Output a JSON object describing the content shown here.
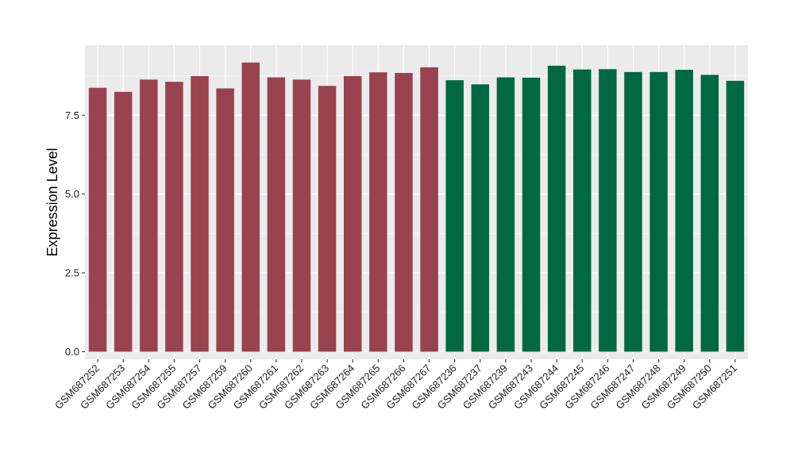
{
  "chart_data": {
    "type": "bar",
    "ylabel": "Expression Level",
    "xlabel": "",
    "ylim": [
      -0.24,
      9.72
    ],
    "yticks": [
      0.0,
      2.5,
      5.0,
      7.5
    ],
    "ytick_labels": [
      "0.0",
      "2.5",
      "5.0",
      "7.5"
    ],
    "grid": true,
    "legend": "none",
    "colors": {
      "group1": "#98434F",
      "group2": "#006843",
      "panel": "#EBEBEB",
      "grid": "#FFFFFF"
    },
    "categories": [
      "GSM687252",
      "GSM687253",
      "GSM687254",
      "GSM687255",
      "GSM687257",
      "GSM687259",
      "GSM687260",
      "GSM687261",
      "GSM687262",
      "GSM687263",
      "GSM687264",
      "GSM687265",
      "GSM687266",
      "GSM687267",
      "GSM687236",
      "GSM687237",
      "GSM687239",
      "GSM687243",
      "GSM687244",
      "GSM687245",
      "GSM687246",
      "GSM687247",
      "GSM687248",
      "GSM687249",
      "GSM687250",
      "GSM687251"
    ],
    "values": [
      8.37,
      8.24,
      8.63,
      8.56,
      8.74,
      8.35,
      9.17,
      8.7,
      8.63,
      8.43,
      8.74,
      8.86,
      8.84,
      9.02,
      8.61,
      8.48,
      8.7,
      8.69,
      9.07,
      8.95,
      8.96,
      8.87,
      8.87,
      8.94,
      8.78,
      8.59
    ],
    "groups": [
      1,
      1,
      1,
      1,
      1,
      1,
      1,
      1,
      1,
      1,
      1,
      1,
      1,
      1,
      2,
      2,
      2,
      2,
      2,
      2,
      2,
      2,
      2,
      2,
      2,
      2
    ]
  }
}
